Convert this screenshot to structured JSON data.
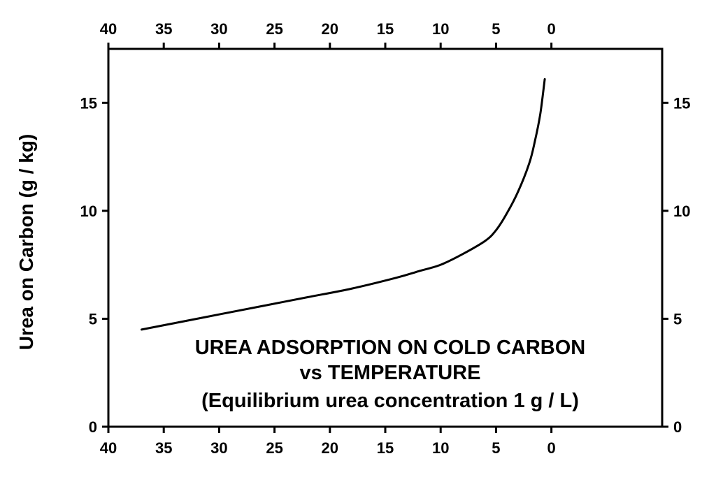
{
  "chart_data": {
    "type": "line",
    "title_lines": [
      "UREA ADSORPTION ON COLD CARBON",
      "vs TEMPERATURE",
      "(Equilibrium urea concentration 1 g / L)"
    ],
    "xlabel": "",
    "ylabel": "Urea on Carbon (g / kg)",
    "x_reversed": true,
    "xlim": [
      40,
      -10
    ],
    "ylim": [
      0,
      17.5
    ],
    "x_ticks": [
      40,
      35,
      30,
      25,
      20,
      15,
      10,
      5,
      0
    ],
    "y_ticks": [
      0,
      5,
      10,
      15
    ],
    "grid": false,
    "series": [
      {
        "x": [
          37,
          34,
          30,
          26,
          22,
          18,
          14,
          12,
          10,
          8,
          6,
          5,
          4,
          3,
          2,
          1.5,
          1,
          0.6
        ],
        "y": [
          4.5,
          4.8,
          5.2,
          5.6,
          6.0,
          6.4,
          6.9,
          7.2,
          7.5,
          8.0,
          8.6,
          9.1,
          9.9,
          10.9,
          12.2,
          13.2,
          14.5,
          16.1
        ]
      }
    ]
  }
}
